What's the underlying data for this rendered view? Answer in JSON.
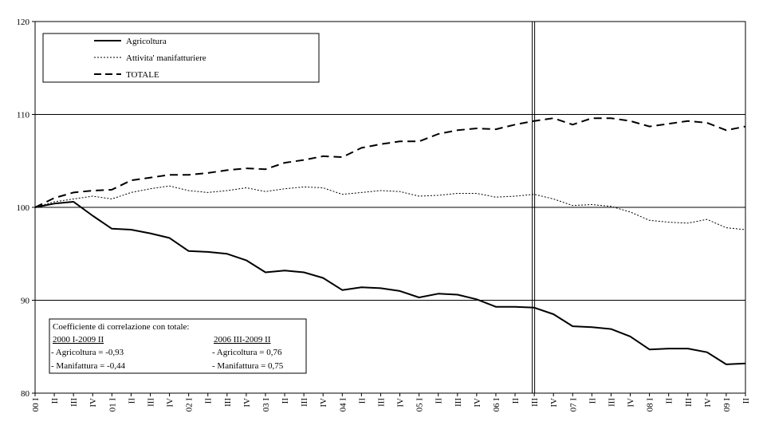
{
  "chart_data": {
    "type": "line",
    "title": "",
    "xlabel": "",
    "ylabel": "",
    "ylim": [
      80,
      120
    ],
    "yticks": [
      80,
      90,
      100,
      110,
      120
    ],
    "x_tick_labels": [
      "00 I",
      "II",
      "III",
      "IV",
      "01 I",
      "II",
      "III",
      "IV",
      "02 I",
      "II",
      "III",
      "IV",
      "03 I",
      "II",
      "III",
      "IV",
      "04 I",
      "II",
      "III",
      "IV",
      "05 I",
      "II",
      "III",
      "IV",
      "06 I",
      "II",
      "III",
      "IV",
      "07 I",
      "II",
      "III",
      "IV",
      "08 I",
      "II",
      "III",
      "IV",
      "09 I",
      "II"
    ],
    "grid": {
      "horizontal": [
        90,
        100,
        110
      ],
      "vertical": false
    },
    "marker_after_category": "06 II",
    "legend": {
      "placement": "top-left",
      "entries": [
        {
          "label": "Agricoltura",
          "style": "solid"
        },
        {
          "label": "Attivita' manifatturiere",
          "style": "dotted"
        },
        {
          "label": "TOTALE",
          "style": "dashed"
        }
      ]
    },
    "series": [
      {
        "name": "Agricoltura",
        "style": "solid",
        "values": [
          100.0,
          100.4,
          100.6,
          99.1,
          97.7,
          97.6,
          97.2,
          96.7,
          95.3,
          95.2,
          95.0,
          94.3,
          93.0,
          93.2,
          93.0,
          92.4,
          91.1,
          91.4,
          91.3,
          91.0,
          90.3,
          90.7,
          90.6,
          90.1,
          89.3,
          89.3,
          89.2,
          88.5,
          87.2,
          87.1,
          86.9,
          86.1,
          84.7,
          84.8,
          84.8,
          84.4,
          83.1,
          83.2
        ]
      },
      {
        "name": "Attivita' manifatturiere",
        "style": "dotted",
        "values": [
          100.0,
          100.6,
          100.9,
          101.2,
          100.9,
          101.6,
          102.0,
          102.3,
          101.8,
          101.6,
          101.8,
          102.1,
          101.7,
          102.0,
          102.2,
          102.1,
          101.4,
          101.6,
          101.8,
          101.7,
          101.2,
          101.3,
          101.5,
          101.5,
          101.1,
          101.2,
          101.4,
          100.9,
          100.2,
          100.3,
          100.1,
          99.5,
          98.6,
          98.4,
          98.3,
          98.7,
          97.8,
          97.6
        ]
      },
      {
        "name": "TOTALE",
        "style": "dashed",
        "values": [
          100.0,
          101.0,
          101.6,
          101.8,
          101.9,
          102.9,
          103.2,
          103.5,
          103.5,
          103.7,
          104.0,
          104.2,
          104.1,
          104.8,
          105.1,
          105.5,
          105.4,
          106.4,
          106.8,
          107.1,
          107.1,
          107.9,
          108.3,
          108.5,
          108.4,
          108.9,
          109.3,
          109.6,
          108.9,
          109.6,
          109.6,
          109.3,
          108.7,
          109.0,
          109.3,
          109.1,
          108.3,
          108.7
        ]
      }
    ],
    "annotation": {
      "title": "Coefficiente di correlazione con totale:",
      "columns": [
        {
          "period": "2000 I-2009 II",
          "lines": [
            "- Agricoltura = -0,93",
            "- Manifattura = -0,44"
          ]
        },
        {
          "period": "2006 III-2009 II",
          "lines": [
            "- Agricoltura = 0,76",
            "- Manifattura = 0,75"
          ]
        }
      ]
    }
  }
}
